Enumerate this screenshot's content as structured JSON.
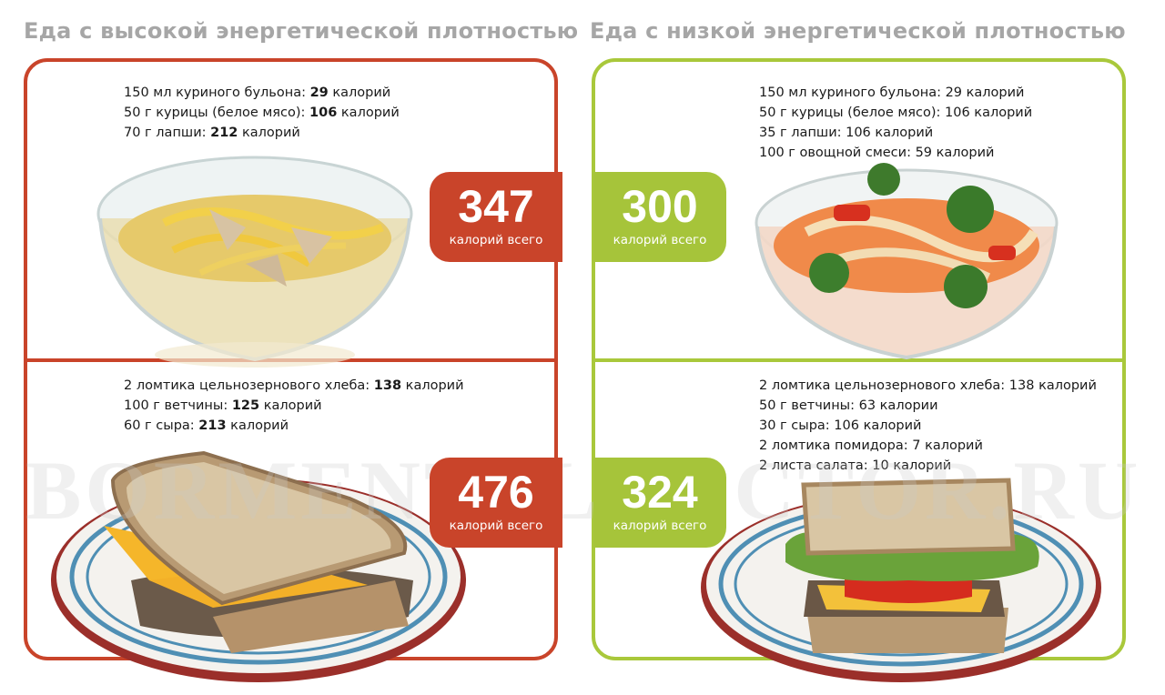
{
  "columns": {
    "high": {
      "title": "Еда с высокой энергетической плотностью",
      "soup": {
        "items": [
          {
            "text": "150 мл куриного бульона: ",
            "value": "29",
            "unit": " калорий"
          },
          {
            "text": "50 г курицы (белое мясо): ",
            "value": "106",
            "unit": " калорий"
          },
          {
            "text": "70 г лапши: ",
            "value": "212",
            "unit": " калорий"
          }
        ],
        "total": "347",
        "total_label": "калорий всего"
      },
      "sandwich": {
        "items": [
          {
            "text": "2 ломтика цельнозернового хлеба: ",
            "value": "138",
            "unit": " калорий"
          },
          {
            "text": "100 г ветчины: ",
            "value": "125",
            "unit": " калорий"
          },
          {
            "text": "60 г сыра: ",
            "value": "213",
            "unit": " калорий"
          }
        ],
        "total": "476",
        "total_label": "калорий всего"
      }
    },
    "low": {
      "title": "Еда с низкой энергетической плотностью",
      "soup": {
        "items": [
          "150 мл куриного бульона: 29 калорий",
          "50 г курицы (белое мясо): 106 калорий",
          "35 г лапши: 106 калорий",
          "100 г овощной смеси: 59 калорий"
        ],
        "total": "300",
        "total_label": "калорий всего"
      },
      "sandwich": {
        "items": [
          "2 ломтика цельнозернового хлеба: 138 калорий",
          "50 г ветчины: 63 калории",
          "30 г сыра: 106 калорий",
          "2 ломтика помидора: 7 калорий",
          "2 листа салата: 10 калорий"
        ],
        "total": "324",
        "total_label": "калорий всего"
      }
    }
  },
  "watermark": "BORMENTALDOCTOR.RU",
  "colors": {
    "high_accent": "#c9442a",
    "low_accent": "#a9c83b",
    "title_gray": "#a6a6a6"
  }
}
